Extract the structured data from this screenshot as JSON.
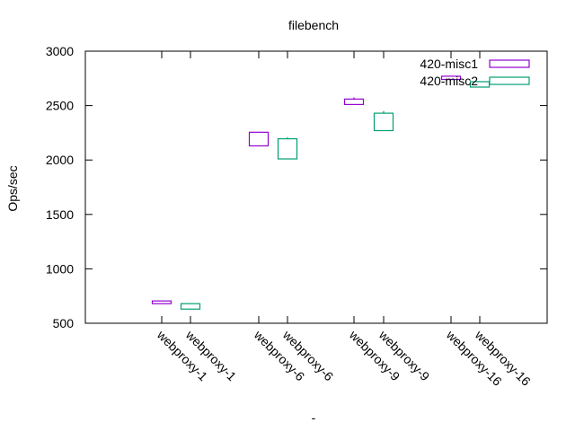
{
  "chart_data": {
    "type": "candlestick",
    "title": "filebench",
    "xlabel": "-",
    "ylabel": "Ops/sec",
    "ylim": [
      500,
      3000
    ],
    "yticks": [
      500,
      1000,
      1500,
      2000,
      2500,
      3000
    ],
    "legend_position": "top-right",
    "series": [
      {
        "name": "420-misc1",
        "color": "#9400d3",
        "boxes": [
          {
            "label": "webproxy-1",
            "low": 680,
            "open": 680,
            "close": 705,
            "high": 705
          },
          {
            "label": "webproxy-6",
            "low": 2125,
            "open": 2130,
            "close": 2255,
            "high": 2255
          },
          {
            "label": "webproxy-9",
            "low": 2510,
            "open": 2510,
            "close": 2560,
            "high": 2575
          },
          {
            "label": "webproxy-16",
            "low": 2740,
            "open": 2740,
            "close": 2770,
            "high": 2770
          }
        ]
      },
      {
        "name": "420-misc2",
        "color": "#009e73",
        "boxes": [
          {
            "label": "webproxy-1",
            "low": 630,
            "open": 630,
            "close": 680,
            "high": 680
          },
          {
            "label": "webproxy-6",
            "low": 2010,
            "open": 2010,
            "close": 2195,
            "high": 2210
          },
          {
            "label": "webproxy-9",
            "low": 2270,
            "open": 2270,
            "close": 2430,
            "high": 2450
          },
          {
            "label": "webproxy-16",
            "low": 2670,
            "open": 2670,
            "close": 2720,
            "high": 2720
          }
        ]
      }
    ]
  }
}
